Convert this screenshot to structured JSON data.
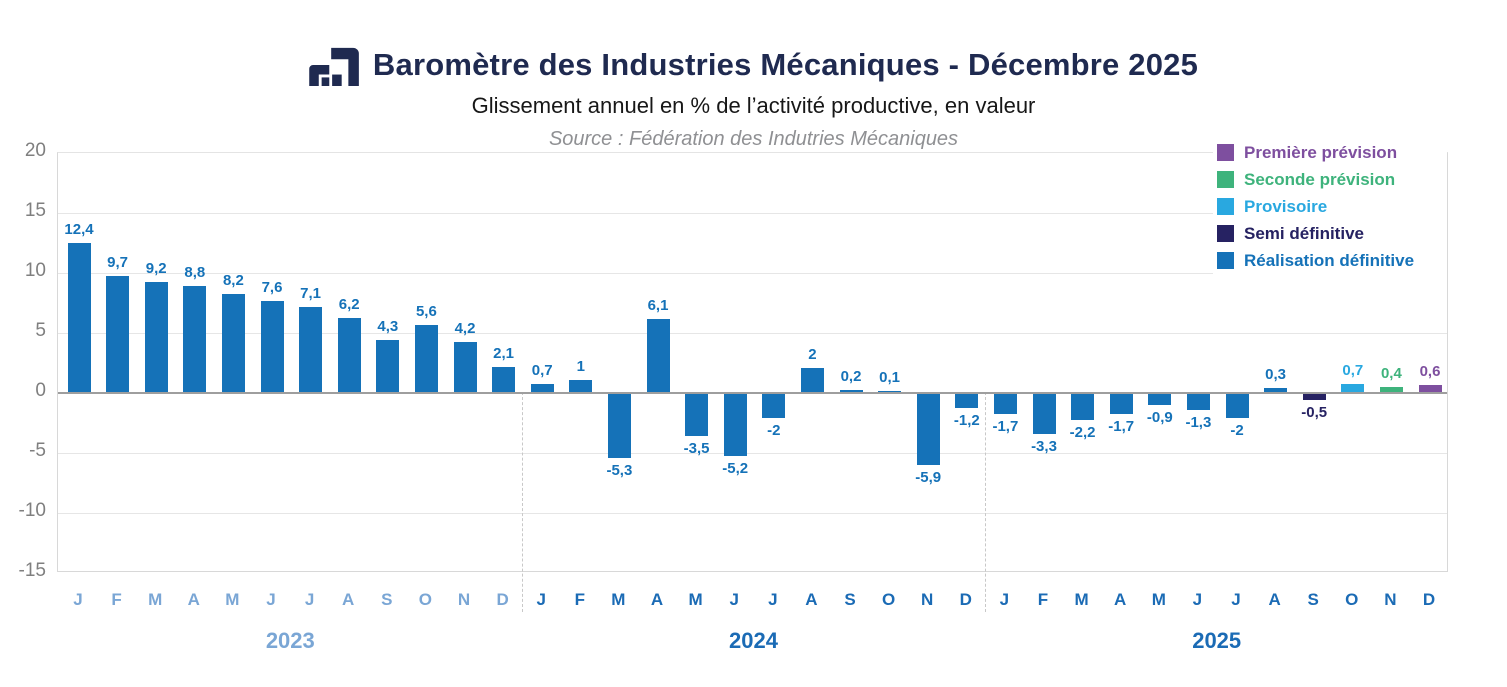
{
  "header": {
    "title": "Baromètre des Industries Mécaniques - Décembre 2025",
    "subtitle": "Glissement annuel en % de l’activité productive, en valeur",
    "source": "Source : Fédération des Indutries Mécaniques",
    "logo_color": "#1f2a50"
  },
  "chart_data": {
    "type": "bar",
    "title": "Baromètre des Industries Mécaniques - Décembre 2025",
    "subtitle": "Glissement annuel en % de l’activité productive, en valeur",
    "source": "Source : Fédération des Indutries Mécaniques",
    "ylabel": "",
    "xlabel": "",
    "ylim": [
      -15,
      20
    ],
    "grid": true,
    "y_ticks": [
      20,
      15,
      10,
      5,
      0,
      -5,
      -10,
      -15
    ],
    "legend_position": "top-right",
    "legend": [
      {
        "key": "premiere_prevision",
        "label": "Première prévision",
        "color": "#7e4f9f"
      },
      {
        "key": "seconde_prevision",
        "label": "Seconde prévision",
        "color": "#3eb37c"
      },
      {
        "key": "provisoire",
        "label": "Provisoire",
        "color": "#29a8e0"
      },
      {
        "key": "semi_definitive",
        "label": "Semi définitive",
        "color": "#262262"
      },
      {
        "key": "realisation_definitive",
        "label": "Réalisation définitive",
        "color": "#1572b8"
      }
    ],
    "years": [
      {
        "year": "2023",
        "label_color": "#7aa6d5",
        "points": [
          {
            "m": "J",
            "v": 12.4,
            "label": "12,4",
            "series": "realisation_definitive"
          },
          {
            "m": "F",
            "v": 9.7,
            "label": "9,7",
            "series": "realisation_definitive"
          },
          {
            "m": "M",
            "v": 9.2,
            "label": "9,2",
            "series": "realisation_definitive"
          },
          {
            "m": "A",
            "v": 8.8,
            "label": "8,8",
            "series": "realisation_definitive"
          },
          {
            "m": "M",
            "v": 8.2,
            "label": "8,2",
            "series": "realisation_definitive"
          },
          {
            "m": "J",
            "v": 7.6,
            "label": "7,6",
            "series": "realisation_definitive"
          },
          {
            "m": "J",
            "v": 7.1,
            "label": "7,1",
            "series": "realisation_definitive"
          },
          {
            "m": "A",
            "v": 6.2,
            "label": "6,2",
            "series": "realisation_definitive"
          },
          {
            "m": "S",
            "v": 4.3,
            "label": "4,3",
            "series": "realisation_definitive"
          },
          {
            "m": "O",
            "v": 5.6,
            "label": "5,6",
            "series": "realisation_definitive"
          },
          {
            "m": "N",
            "v": 4.2,
            "label": "4,2",
            "series": "realisation_definitive"
          },
          {
            "m": "D",
            "v": 2.1,
            "label": "2,1",
            "series": "realisation_definitive"
          }
        ]
      },
      {
        "year": "2024",
        "label_color": "#1b6bb5",
        "points": [
          {
            "m": "J",
            "v": 0.7,
            "label": "0,7",
            "series": "realisation_definitive"
          },
          {
            "m": "F",
            "v": 1,
            "label": "1",
            "series": "realisation_definitive"
          },
          {
            "m": "M",
            "v": -5.3,
            "label": "-5,3",
            "series": "realisation_definitive"
          },
          {
            "m": "A",
            "v": 6.1,
            "label": "6,1",
            "series": "realisation_definitive"
          },
          {
            "m": "M",
            "v": -3.5,
            "label": "-3,5",
            "series": "realisation_definitive"
          },
          {
            "m": "J",
            "v": -5.2,
            "label": "-5,2",
            "series": "realisation_definitive"
          },
          {
            "m": "J",
            "v": -2,
            "label": "-2",
            "series": "realisation_definitive"
          },
          {
            "m": "A",
            "v": 2,
            "label": "2",
            "series": "realisation_definitive"
          },
          {
            "m": "S",
            "v": 0.2,
            "label": "0,2",
            "series": "realisation_definitive"
          },
          {
            "m": "O",
            "v": 0.1,
            "label": "0,1",
            "series": "realisation_definitive"
          },
          {
            "m": "N",
            "v": -5.9,
            "label": "-5,9",
            "series": "realisation_definitive"
          },
          {
            "m": "D",
            "v": -1.2,
            "label": "-1,2",
            "series": "realisation_definitive"
          }
        ]
      },
      {
        "year": "2025",
        "label_color": "#1b6bb5",
        "points": [
          {
            "m": "J",
            "v": -1.7,
            "label": "-1,7",
            "series": "realisation_definitive"
          },
          {
            "m": "F",
            "v": -3.3,
            "label": "-3,3",
            "series": "realisation_definitive"
          },
          {
            "m": "M",
            "v": -2.2,
            "label": "-2,2",
            "series": "realisation_definitive"
          },
          {
            "m": "A",
            "v": -1.7,
            "label": "-1,7",
            "series": "realisation_definitive"
          },
          {
            "m": "M",
            "v": -0.9,
            "label": "-0,9",
            "series": "realisation_definitive"
          },
          {
            "m": "J",
            "v": -1.3,
            "label": "-1,3",
            "series": "realisation_definitive"
          },
          {
            "m": "J",
            "v": -2,
            "label": "-2",
            "series": "realisation_definitive"
          },
          {
            "m": "A",
            "v": 0.3,
            "label": "0,3",
            "series": "realisation_definitive"
          },
          {
            "m": "S",
            "v": -0.5,
            "label": "-0,5",
            "series": "semi_definitive"
          },
          {
            "m": "O",
            "v": 0.7,
            "label": "0,7",
            "series": "provisoire"
          },
          {
            "m": "N",
            "v": 0.4,
            "label": "0,4",
            "series": "seconde_prevision"
          },
          {
            "m": "D",
            "v": 0.6,
            "label": "0,6",
            "series": "premiere_prevision"
          }
        ]
      }
    ]
  }
}
